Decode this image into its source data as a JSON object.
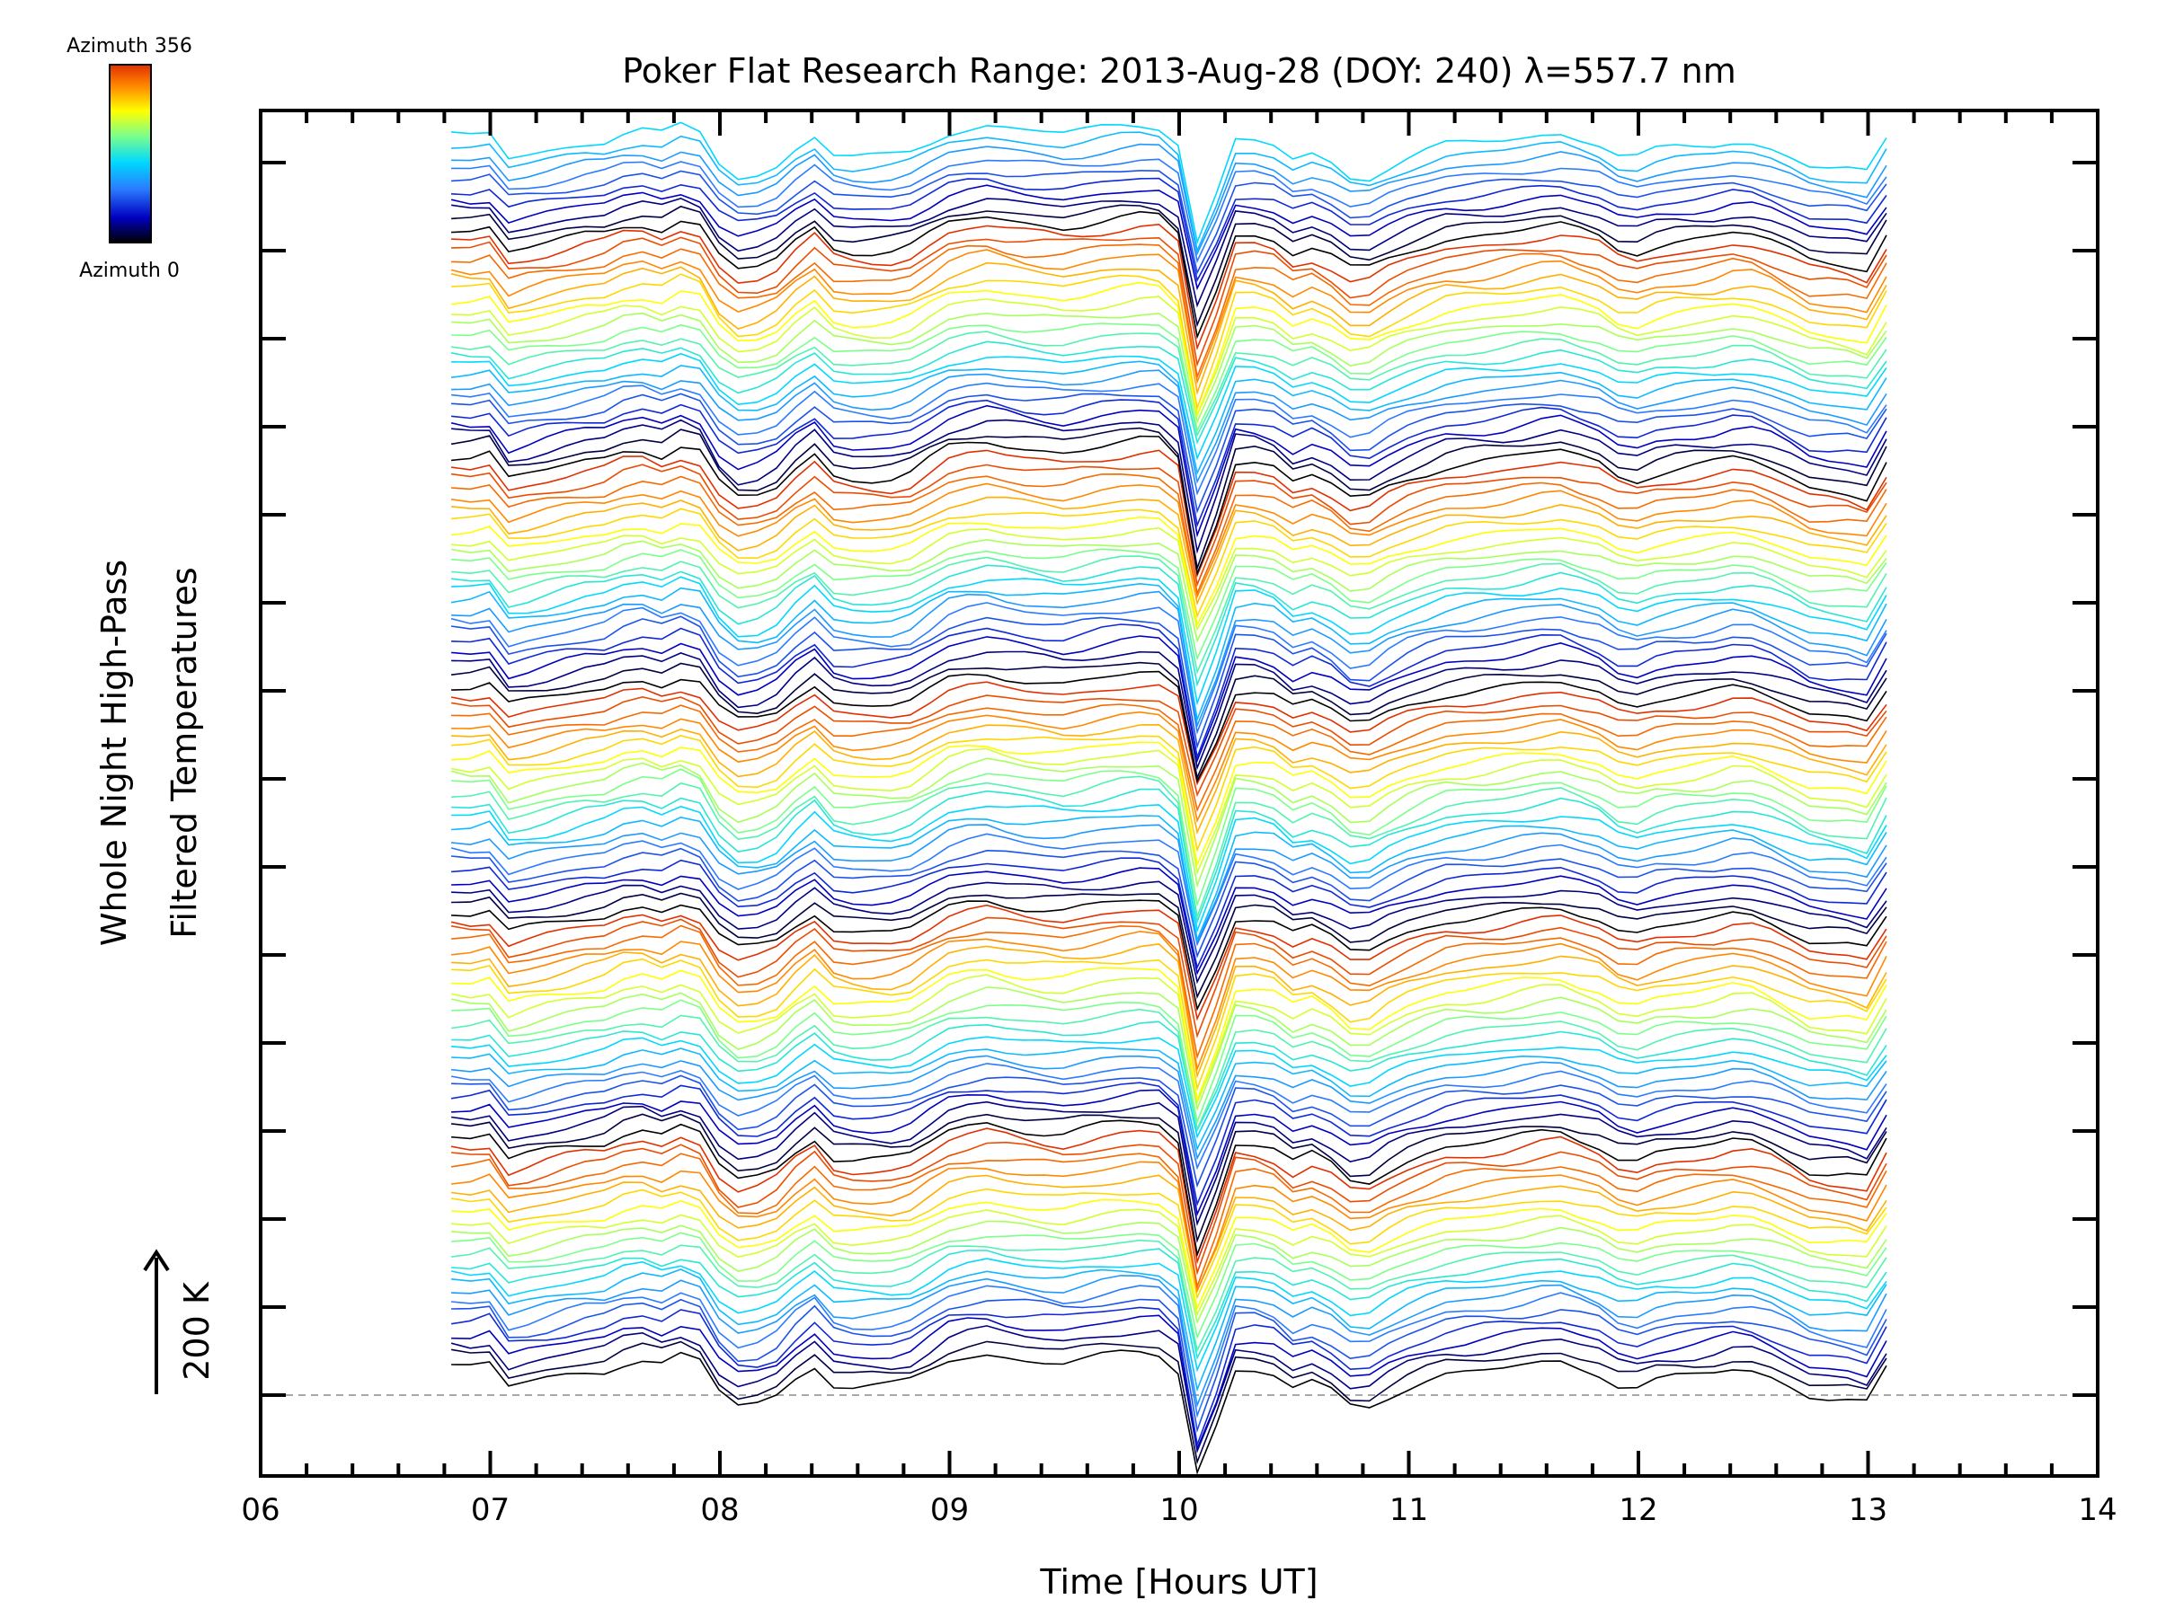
{
  "chart_data": {
    "type": "line",
    "title": "Poker Flat Research Range: 2013-Aug-28 (DOY: 240) λ=557.7 nm",
    "xlabel": "Time [Hours UT]",
    "ylabel_line1": "Whole Night High-Pass",
    "ylabel_line2": "Filtered Temperatures",
    "xlim": [
      6,
      14
    ],
    "x_tick_labels": [
      "06",
      "07",
      "08",
      "09",
      "10",
      "11",
      "12",
      "13",
      "14"
    ],
    "y_ticks_count": 15,
    "scale_bar_label": "200 K",
    "colorbar_top_label": "Azimuth 356",
    "colorbar_bottom_label": "Azimuth 0",
    "series_count": 120,
    "colors": {
      "axis": "#000000",
      "baseline": "#a8a8a8",
      "colormap_stops": [
        "#000000",
        "#0000c0",
        "#2a7bff",
        "#00d8ff",
        "#7cff8a",
        "#ffff00",
        "#ff8800",
        "#e03000"
      ]
    },
    "time_start": 6.83,
    "time_end": 13.08,
    "time_step": 0.0833,
    "base_profile": [
      [
        6.83,
        0.6
      ],
      [
        6.95,
        0.55
      ],
      [
        7.0,
        0.7
      ],
      [
        7.05,
        -0.25
      ],
      [
        7.2,
        0.0
      ],
      [
        7.4,
        0.35
      ],
      [
        7.55,
        0.5
      ],
      [
        7.62,
        1.05
      ],
      [
        7.72,
        0.55
      ],
      [
        7.82,
        0.9
      ],
      [
        7.88,
        1.15
      ],
      [
        8.0,
        -0.4
      ],
      [
        8.1,
        -1.0
      ],
      [
        8.25,
        -0.5
      ],
      [
        8.35,
        0.3
      ],
      [
        8.4,
        0.75
      ],
      [
        8.48,
        -0.05
      ],
      [
        8.6,
        -0.2
      ],
      [
        8.8,
        -0.15
      ],
      [
        9.0,
        0.8
      ],
      [
        9.15,
        1.05
      ],
      [
        9.3,
        0.85
      ],
      [
        9.5,
        0.7
      ],
      [
        9.7,
        0.95
      ],
      [
        9.9,
        1.1
      ],
      [
        10.0,
        0.4
      ],
      [
        10.05,
        -2.8
      ],
      [
        10.1,
        -3.6
      ],
      [
        10.18,
        -1.0
      ],
      [
        10.25,
        0.5
      ],
      [
        10.4,
        0.3
      ],
      [
        10.5,
        -0.3
      ],
      [
        10.6,
        0.0
      ],
      [
        10.78,
        -1.1
      ],
      [
        10.95,
        -0.3
      ],
      [
        11.15,
        0.25
      ],
      [
        11.4,
        0.45
      ],
      [
        11.65,
        0.75
      ],
      [
        11.85,
        0.3
      ],
      [
        11.95,
        -0.3
      ],
      [
        12.1,
        0.1
      ],
      [
        12.3,
        0.25
      ],
      [
        12.45,
        0.5
      ],
      [
        12.6,
        0.1
      ],
      [
        12.75,
        -0.5
      ],
      [
        12.9,
        -0.6
      ],
      [
        13.0,
        -0.8
      ],
      [
        13.08,
        0.4
      ]
    ]
  }
}
